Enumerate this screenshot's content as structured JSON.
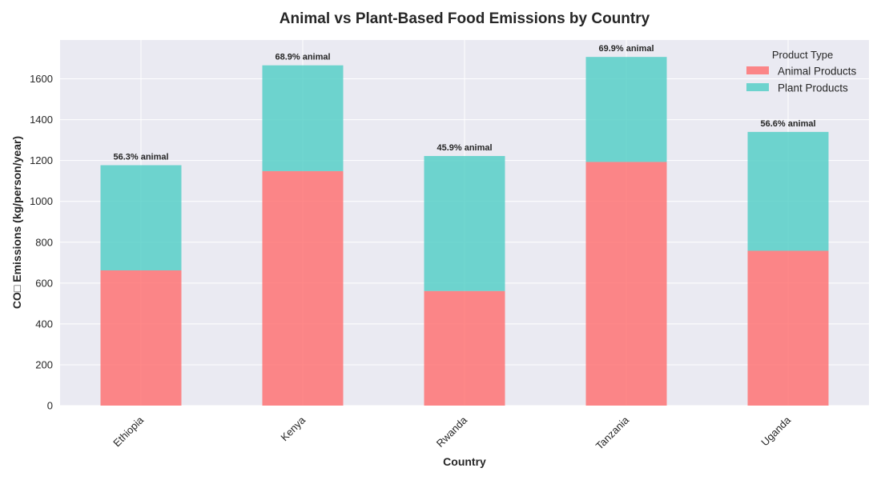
{
  "chart_data": {
    "type": "bar",
    "stacked": true,
    "title": "Animal vs Plant-Based Food Emissions by Country",
    "xlabel": "Country",
    "ylabel": "CO□ Emissions (kg/person/year)",
    "categories": [
      "Ethiopia",
      "Kenya",
      "Rwanda",
      "Tanzania",
      "Uganda"
    ],
    "series": [
      {
        "name": "Animal Products",
        "color": "#ff6b6b",
        "values": [
          662,
          1148,
          561,
          1193,
          758
        ]
      },
      {
        "name": "Plant Products",
        "color": "#4ecdc4",
        "values": [
          515,
          518,
          661,
          514,
          582
        ]
      }
    ],
    "bar_labels": [
      "56.3% animal",
      "68.9% animal",
      "45.9% animal",
      "69.9% animal",
      "56.6% animal"
    ],
    "ylim": [
      0,
      1790
    ],
    "yticks": [
      0,
      200,
      400,
      600,
      800,
      1000,
      1200,
      1400,
      1600
    ],
    "grid": true,
    "legend": {
      "title": "Product Type",
      "position": "top-right"
    },
    "background_color": "#eaeaf2"
  }
}
